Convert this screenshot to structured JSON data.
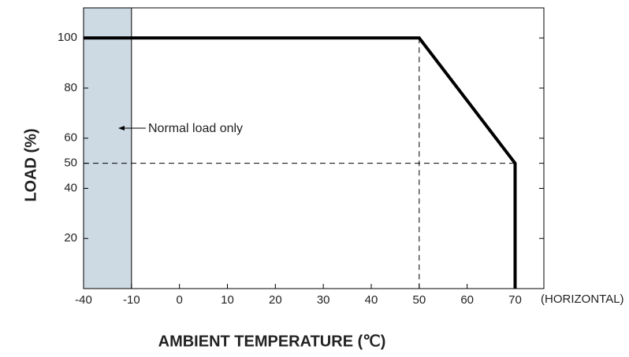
{
  "chart_data": {
    "type": "line",
    "x": [
      -40,
      50,
      70,
      70
    ],
    "series": [
      {
        "values": [
          100,
          100,
          50,
          0
        ],
        "color": "#000000"
      }
    ],
    "xlim": [
      -40,
      76
    ],
    "xticks": [
      -40,
      -10,
      0,
      10,
      20,
      30,
      40,
      50,
      60,
      70
    ],
    "ylim": [
      0,
      112
    ],
    "yticks": [
      20,
      40,
      50,
      60,
      80,
      100
    ],
    "xlabel": "AMBIENT TEMPERATURE (℃)",
    "ylabel": "LOAD (%)",
    "x_note": "(HORIZONTAL)",
    "shade": {
      "x": [
        -40,
        -10
      ],
      "color": "#cdd9e3",
      "label": "Normal load only"
    },
    "guides": true
  }
}
